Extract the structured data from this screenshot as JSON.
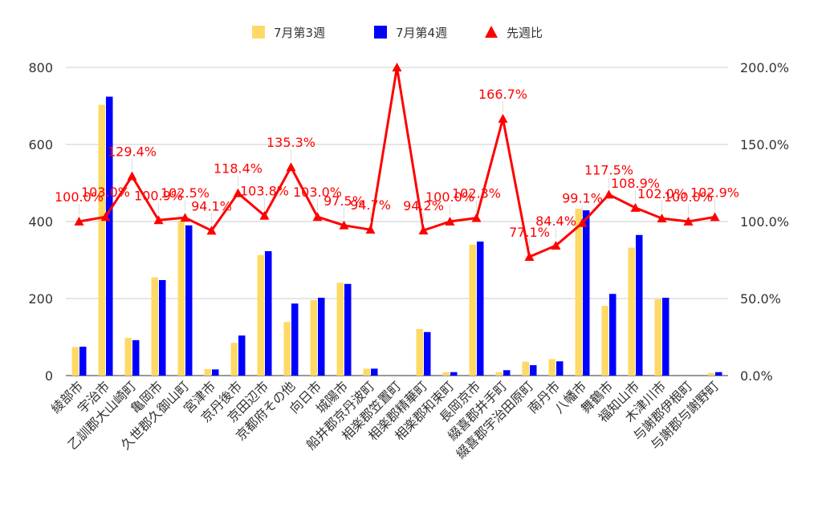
{
  "chart_data": {
    "type": "bar",
    "categories": [
      "綾部市",
      "宇治市",
      "乙訓郡大山崎町",
      "亀岡市",
      "久世郡久御山町",
      "宮津市",
      "京丹後市",
      "京田辺市",
      "京都府その他",
      "向日市",
      "城陽市",
      "船井郡京丹波町",
      "相楽郡笠置町",
      "相楽郡精華町",
      "相楽郡和束町",
      "長岡京市",
      "綴喜郡井手町",
      "綴喜郡宇治田原町",
      "南丹市",
      "八幡市",
      "舞鶴市",
      "福知山市",
      "木津川市",
      "与謝郡伊根町",
      "与謝郡与謝野町"
    ],
    "series": [
      {
        "name": "7月第3週",
        "type": "bar",
        "axis": "left",
        "color": "#ffd966",
        "values": [
          74,
          703,
          98,
          255,
          402,
          17,
          85,
          313,
          139,
          196,
          241,
          18,
          0,
          121,
          9,
          340,
          9,
          36,
          43,
          433,
          181,
          332,
          198,
          0,
          7
        ]
      },
      {
        "name": "7月第4週",
        "type": "bar",
        "axis": "left",
        "color": "#0000ff",
        "values": [
          75,
          724,
          92,
          248,
          390,
          16,
          104,
          323,
          187,
          202,
          238,
          18,
          0,
          113,
          9,
          348,
          14,
          27,
          37,
          429,
          212,
          365,
          202,
          0,
          9
        ]
      },
      {
        "name": "先週比",
        "type": "line",
        "axis": "right",
        "color": "#ff0000",
        "values": [
          100.0,
          103.0,
          129.4,
          100.9,
          102.5,
          94.1,
          118.4,
          103.8,
          135.3,
          103.0,
          97.5,
          94.7,
          200.0,
          94.2,
          100.0,
          102.3,
          166.7,
          77.1,
          84.4,
          99.1,
          117.5,
          108.9,
          102.0,
          100.0,
          102.9
        ],
        "labels": [
          "100.0%",
          "103.0%",
          "129.4%",
          "100.9%",
          "102.5%",
          "94.1%",
          "118.4%",
          "103.8%",
          "135.3%",
          "103.0%",
          "97.5%",
          "94.7%",
          "",
          "94.2%",
          "100.0%",
          "102.3%",
          "166.7%",
          "77.1%",
          "84.4%",
          "99.1%",
          "117.5%",
          "108.9%",
          "102.0%",
          "100.0%",
          "102.9%"
        ]
      }
    ],
    "y_left": {
      "range": [
        0,
        800
      ],
      "ticks": [
        "0",
        "200",
        "400",
        "600",
        "800"
      ]
    },
    "y_right": {
      "range": [
        0,
        200
      ],
      "ticks": [
        "0.0%",
        "50.0%",
        "100.0%",
        "150.0%",
        "200.0%"
      ]
    },
    "legend": {
      "position": "top",
      "entries": [
        "7月第3週",
        "7月第4週",
        "先週比"
      ]
    },
    "grid": true,
    "title": "",
    "xlabel": "",
    "ylabel": ""
  }
}
